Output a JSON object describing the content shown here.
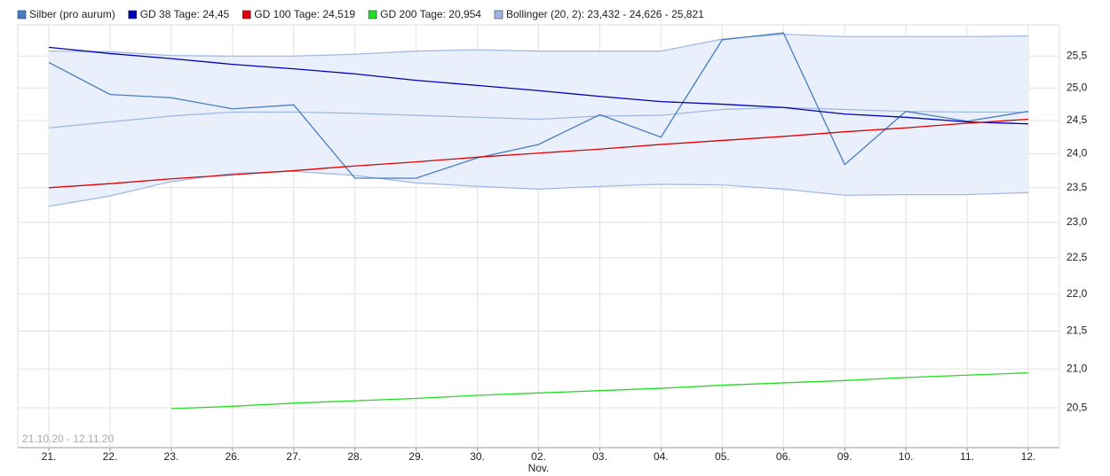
{
  "chart_data": {
    "type": "line",
    "date_range": "21.10.20 - 12.11.20",
    "categories": [
      "21.",
      "22.",
      "23.",
      "26.",
      "27.",
      "28.",
      "29.",
      "30.",
      "02.",
      "03.",
      "04.",
      "05.",
      "06.",
      "09.",
      "10.",
      "11.",
      "12."
    ],
    "category_sublabels": [
      null,
      null,
      null,
      null,
      null,
      null,
      null,
      null,
      "Nov.",
      null,
      null,
      null,
      null,
      null,
      null,
      null,
      null
    ],
    "ylim": [
      20,
      26
    ],
    "log_y": true,
    "grid": true,
    "yticks": [
      {
        "value": 20.5,
        "label": "20,5"
      },
      {
        "value": 21,
        "label": "21,0"
      },
      {
        "value": 21.5,
        "label": "21,5"
      },
      {
        "value": 22,
        "label": "22,0"
      },
      {
        "value": 22.5,
        "label": "22,5"
      },
      {
        "value": 23,
        "label": "23,0"
      },
      {
        "value": 23.5,
        "label": "23,5"
      },
      {
        "value": 24,
        "label": "24,0"
      },
      {
        "value": 24.5,
        "label": "24,5"
      },
      {
        "value": 25,
        "label": "25,0"
      },
      {
        "value": 25.5,
        "label": "25,5"
      }
    ],
    "band": {
      "name": "Bollinger (20, 2): 23,432 - 24,626 - 25,821",
      "color": "#9db6e2",
      "fill": "#e9effb",
      "upper": [
        25.58,
        25.57,
        25.51,
        25.5,
        25.5,
        25.53,
        25.58,
        25.6,
        25.58,
        25.58,
        25.58,
        25.77,
        25.85,
        25.81,
        25.81,
        25.81,
        25.82
      ],
      "middle": [
        24.39,
        24.48,
        24.57,
        24.63,
        24.63,
        24.61,
        24.58,
        24.55,
        24.52,
        24.57,
        24.58,
        24.67,
        24.7,
        24.67,
        24.64,
        24.63,
        24.63
      ],
      "lower": [
        23.23,
        23.38,
        23.59,
        23.71,
        23.74,
        23.68,
        23.57,
        23.52,
        23.48,
        23.52,
        23.55,
        23.54,
        23.48,
        23.39,
        23.4,
        23.4,
        23.43
      ]
    },
    "series": [
      {
        "name": "Silber (pro aurum)",
        "color": "#4a7cc0",
        "values": [
          25.4,
          24.9,
          24.85,
          24.68,
          24.74,
          23.64,
          23.64,
          23.94,
          24.14,
          24.59,
          24.25,
          25.76,
          25.87,
          23.84,
          24.64,
          24.49,
          24.64
        ]
      },
      {
        "name": "GD 38 Tage: 24,45",
        "color": "#0000b4",
        "values": [
          25.64,
          25.54,
          25.46,
          25.37,
          25.3,
          25.22,
          25.12,
          25.04,
          24.96,
          24.87,
          24.79,
          24.75,
          24.7,
          24.6,
          24.55,
          24.48,
          24.45
        ]
      },
      {
        "name": "GD 100 Tage: 24,519",
        "color": "#e00000",
        "values": [
          23.5,
          23.56,
          23.63,
          23.69,
          23.75,
          23.82,
          23.88,
          23.95,
          24.01,
          24.07,
          24.14,
          24.2,
          24.26,
          24.33,
          24.39,
          24.46,
          24.52
        ]
      },
      {
        "name": "GD 200 Tage: 20,954",
        "color": "#22dd22",
        "values": [
          null,
          null,
          20.49,
          20.52,
          20.56,
          20.59,
          20.62,
          20.66,
          20.69,
          20.72,
          20.75,
          20.79,
          20.82,
          20.85,
          20.89,
          20.92,
          20.95
        ]
      }
    ]
  }
}
